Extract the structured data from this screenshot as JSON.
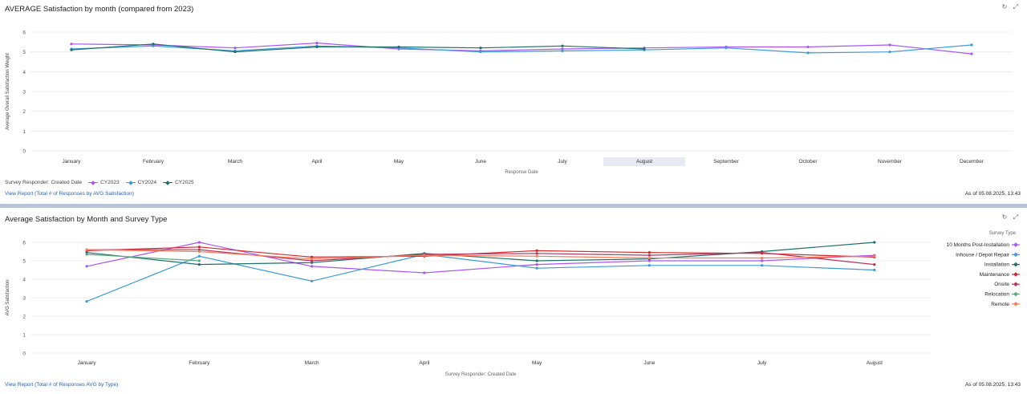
{
  "panel1": {
    "title": "AVERAGE Satisfaction by month (compared from 2023)",
    "legend_title": "Survey Responder: Created Date",
    "link": "View Report (Total # of Responses by AVG Satisfaction)",
    "as_of": "As of 05.08.2025, 13:43",
    "highlighted_category": "August"
  },
  "panel2": {
    "title": "Average Satisfaction by Month and Survey Type",
    "legend_title": "Survey Type",
    "link": "View Report (Total # of Responses AVG by Type)",
    "as_of": "As of 05.08.2025, 13:43"
  },
  "icons": [
    "refresh-icon",
    "expand-icon"
  ],
  "chart_data": [
    {
      "type": "line",
      "title": "AVERAGE Satisfaction by month (compared from 2023)",
      "xlabel": "Response Date",
      "ylabel": "Average Overall Satisfaction Weight",
      "ylim": [
        0,
        6
      ],
      "yticks": [
        0,
        1,
        2,
        3,
        4,
        5,
        6
      ],
      "grid": true,
      "legend_position": "bottom-left",
      "categories": [
        "January",
        "February",
        "March",
        "April",
        "May",
        "June",
        "July",
        "August",
        "September",
        "October",
        "November",
        "December"
      ],
      "series": [
        {
          "name": "CY2023",
          "color": "#a855f7",
          "values": [
            5.4,
            5.35,
            5.2,
            5.45,
            5.15,
            5.05,
            5.15,
            5.2,
            5.25,
            5.25,
            5.35,
            4.9
          ]
        },
        {
          "name": "CY2024",
          "color": "#3b9bd6",
          "values": [
            5.15,
            5.3,
            5.05,
            5.3,
            5.2,
            5.0,
            5.05,
            5.1,
            5.2,
            4.95,
            5.0,
            5.35
          ]
        },
        {
          "name": "CY2025",
          "color": "#1f6f68",
          "values": [
            5.1,
            5.4,
            5.0,
            5.25,
            5.25,
            5.2,
            5.3,
            5.15,
            null,
            null,
            null,
            null
          ]
        }
      ]
    },
    {
      "type": "line",
      "title": "Average Satisfaction by Month and Survey Type",
      "xlabel": "Survey Responder: Created Date",
      "ylabel": "AVG Satisfaction",
      "ylim": [
        0,
        6
      ],
      "yticks": [
        0,
        1,
        2,
        3,
        4,
        5,
        6
      ],
      "grid": true,
      "legend_position": "right",
      "categories": [
        "January",
        "February",
        "March",
        "April",
        "May",
        "June",
        "July",
        "August"
      ],
      "series": [
        {
          "name": "10 Months Post-Installation",
          "color": "#a855f7",
          "values": [
            4.7,
            6.0,
            4.7,
            4.35,
            4.8,
            5.0,
            5.0,
            5.3
          ]
        },
        {
          "name": "Inhouse / Depot Repair",
          "color": "#3b9bd6",
          "values": [
            2.8,
            5.25,
            3.9,
            5.35,
            4.6,
            4.75,
            4.75,
            4.5
          ]
        },
        {
          "name": "Installation",
          "color": "#1f6f68",
          "values": [
            5.45,
            4.8,
            4.9,
            5.4,
            5.0,
            5.1,
            5.5,
            6.0
          ]
        },
        {
          "name": "Maintenance",
          "color": "#d62728",
          "values": [
            5.55,
            5.75,
            5.2,
            5.25,
            5.55,
            5.45,
            5.4,
            5.2
          ]
        },
        {
          "name": "Onsite",
          "color": "#b5345f",
          "values": [
            5.6,
            5.6,
            5.0,
            5.35,
            5.4,
            5.3,
            5.45,
            4.8
          ]
        },
        {
          "name": "Relocation",
          "color": "#5aa77d",
          "values": [
            5.35,
            5.0,
            null,
            null,
            null,
            null,
            null,
            null
          ]
        },
        {
          "name": "Remote",
          "color": "#f47c5a",
          "values": [
            5.6,
            5.5,
            5.1,
            5.3,
            5.25,
            5.15,
            5.15,
            5.25
          ]
        }
      ]
    }
  ]
}
